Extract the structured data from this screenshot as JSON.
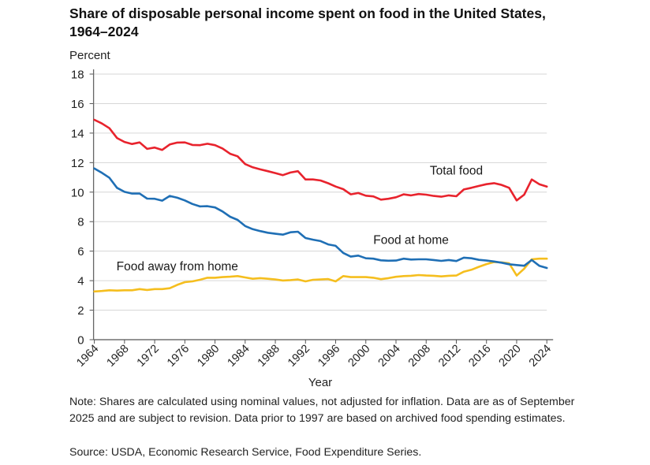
{
  "chart_data": {
    "type": "line",
    "title": "Share of disposable personal income spent on food in the United States, 1964–2024",
    "xlabel": "Year",
    "ylabel": "Percent",
    "xlim": [
      1964,
      2024
    ],
    "ylim": [
      0,
      18
    ],
    "yticks": [
      0,
      2,
      4,
      6,
      8,
      10,
      12,
      14,
      16,
      18
    ],
    "xticks": [
      1964,
      1968,
      1972,
      1976,
      1980,
      1984,
      1988,
      1992,
      1996,
      2000,
      2004,
      2008,
      2012,
      2016,
      2020,
      2024
    ],
    "grid": true,
    "legend": "inline-labels",
    "x": [
      1964,
      1965,
      1966,
      1967,
      1968,
      1969,
      1970,
      1971,
      1972,
      1973,
      1974,
      1975,
      1976,
      1977,
      1978,
      1979,
      1980,
      1981,
      1982,
      1983,
      1984,
      1985,
      1986,
      1987,
      1988,
      1989,
      1990,
      1991,
      1992,
      1993,
      1994,
      1995,
      1996,
      1997,
      1998,
      1999,
      2000,
      2001,
      2002,
      2003,
      2004,
      2005,
      2006,
      2007,
      2008,
      2009,
      2010,
      2011,
      2012,
      2013,
      2014,
      2015,
      2016,
      2017,
      2018,
      2019,
      2020,
      2021,
      2022,
      2023,
      2024
    ],
    "series": [
      {
        "name": "Total food",
        "color": "#E8232D",
        "values": [
          14.9,
          14.65,
          14.33,
          13.67,
          13.4,
          13.26,
          13.37,
          12.93,
          13.02,
          12.86,
          13.23,
          13.36,
          13.37,
          13.2,
          13.18,
          13.28,
          13.18,
          12.96,
          12.6,
          12.43,
          11.9,
          11.68,
          11.54,
          11.42,
          11.29,
          11.15,
          11.33,
          11.42,
          10.86,
          10.86,
          10.79,
          10.6,
          10.38,
          10.2,
          9.85,
          9.94,
          9.76,
          9.71,
          9.49,
          9.55,
          9.65,
          9.85,
          9.78,
          9.87,
          9.83,
          9.74,
          9.69,
          9.78,
          9.72,
          10.18,
          10.29,
          10.42,
          10.54,
          10.61,
          10.49,
          10.29,
          9.44,
          9.83,
          10.86,
          10.54,
          10.38
        ]
      },
      {
        "name": "Food at home",
        "color": "#1F6FB5",
        "values": [
          11.6,
          11.31,
          10.97,
          10.29,
          10.02,
          9.9,
          9.9,
          9.56,
          9.55,
          9.42,
          9.74,
          9.62,
          9.44,
          9.2,
          9.03,
          9.05,
          8.96,
          8.69,
          8.33,
          8.12,
          7.7,
          7.49,
          7.36,
          7.25,
          7.18,
          7.12,
          7.28,
          7.32,
          6.89,
          6.78,
          6.68,
          6.46,
          6.36,
          5.88,
          5.63,
          5.7,
          5.52,
          5.49,
          5.38,
          5.35,
          5.36,
          5.49,
          5.43,
          5.45,
          5.45,
          5.4,
          5.34,
          5.4,
          5.33,
          5.56,
          5.52,
          5.41,
          5.36,
          5.3,
          5.22,
          5.11,
          5.06,
          5.01,
          5.4,
          5.01,
          4.86
        ]
      },
      {
        "name": "Food away from home",
        "color": "#F5BE1E",
        "values": [
          3.27,
          3.3,
          3.35,
          3.33,
          3.35,
          3.35,
          3.43,
          3.37,
          3.43,
          3.43,
          3.49,
          3.72,
          3.9,
          3.95,
          4.06,
          4.2,
          4.2,
          4.24,
          4.27,
          4.31,
          4.22,
          4.13,
          4.17,
          4.13,
          4.08,
          4.01,
          4.04,
          4.08,
          3.95,
          4.06,
          4.08,
          4.11,
          3.95,
          4.31,
          4.24,
          4.24,
          4.24,
          4.2,
          4.1,
          4.17,
          4.26,
          4.31,
          4.33,
          4.38,
          4.35,
          4.33,
          4.29,
          4.33,
          4.35,
          4.61,
          4.74,
          4.94,
          5.12,
          5.26,
          5.24,
          5.18,
          4.35,
          4.81,
          5.45,
          5.49,
          5.49
        ]
      }
    ],
    "annotations": [
      {
        "text": "Total food",
        "series": "Total food",
        "near_year": 2012,
        "near_value": 11.2
      },
      {
        "text": "Food at home",
        "series": "Food at home",
        "near_year": 2006,
        "near_value": 6.5
      },
      {
        "text": "Food away from home",
        "series": "Food away from home",
        "near_year": 1975,
        "near_value": 4.7
      }
    ]
  },
  "title": "Share of disposable personal income spent on food in the United States, 1964–2024",
  "ylabel": "Percent",
  "note": "Note: Shares are calculated using nominal values, not adjusted for inflation. Data are as of September 2025 and are subject to revision. Data prior to 1997 are based on archived food spending estimates.",
  "source": "Source: USDA, Economic Research Service, Food Expenditure Series."
}
